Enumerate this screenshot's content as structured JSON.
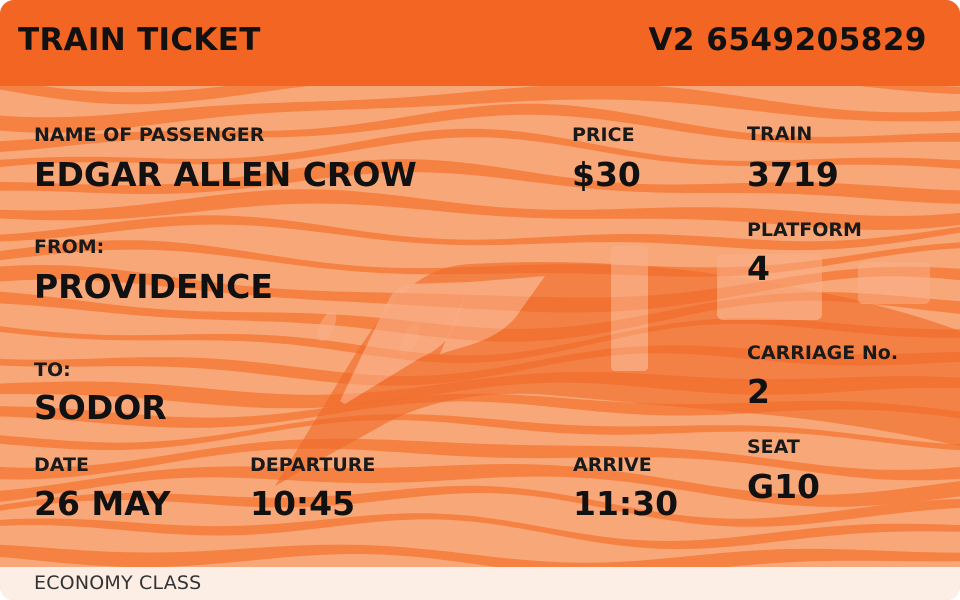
{
  "ticket": {
    "title": "TRAIN TICKET",
    "number": "V2 6549205829",
    "class": "ECONOMY CLASS"
  },
  "fields": {
    "passenger": {
      "label": "NAME OF PASSENGER",
      "value": "EDGAR ALLEN CROW"
    },
    "from": {
      "label": "FROM:",
      "value": "PROVIDENCE"
    },
    "to": {
      "label": "TO:",
      "value": "SODOR"
    },
    "date": {
      "label": "DATE",
      "value": "26 MAY"
    },
    "departure": {
      "label": "DEPARTURE",
      "value": "10:45"
    },
    "price": {
      "label": "PRICE",
      "value": "$30"
    },
    "arrive": {
      "label": "ARRIVE",
      "value": "11:30"
    },
    "train": {
      "label": "TRAIN",
      "value": "3719"
    },
    "platform": {
      "label": "PLATFORM",
      "value": "4"
    },
    "carriage": {
      "label": "CARRIAGE No.",
      "value": "2"
    },
    "seat": {
      "label": "SEAT",
      "value": "G10"
    }
  },
  "colors": {
    "header": "#f26522",
    "body": "#f8a878",
    "wave": "#f47a3a",
    "footer": "#fdeee5"
  },
  "icons": [
    "train-watermark-icon"
  ]
}
